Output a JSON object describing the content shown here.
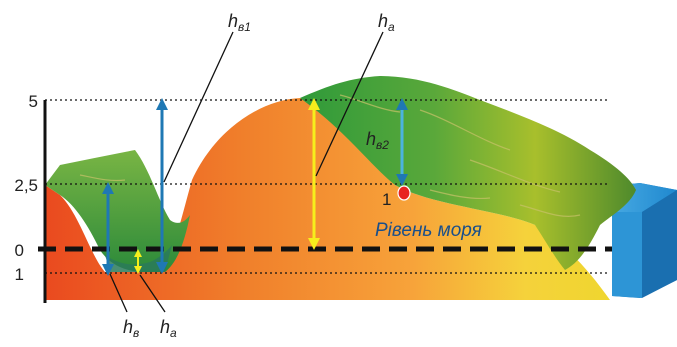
{
  "axis": {
    "ticks": [
      "5",
      "2,5",
      "0",
      "1"
    ]
  },
  "labels": {
    "h_v1_base": "h",
    "h_v1_sub": "в1",
    "h_a_top_base": "h",
    "h_a_top_sub": "а",
    "h_v2_base": "h",
    "h_v2_sub": "в2",
    "point_number": "1",
    "sea_level": "Рівень моря",
    "h_v_bottom_base": "h",
    "h_v_bottom_sub": "в",
    "h_a_bottom_base": "h",
    "h_a_bottom_sub": "а"
  },
  "colors": {
    "blue_arrow": "#1f78b4",
    "yellow_arrow": "#f6ee1c",
    "sea_level_line": "#111111",
    "point": "#e8231f",
    "sea": "#2d95d6"
  }
}
